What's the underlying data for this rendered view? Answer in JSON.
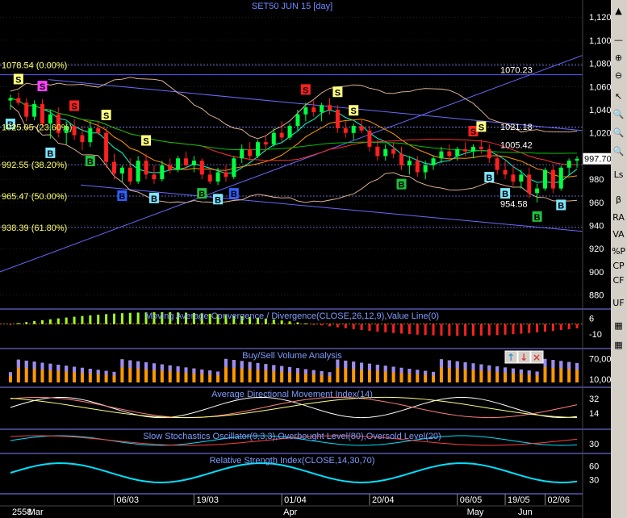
{
  "colors": {
    "background": "#000000",
    "axis_text": "#ffffff",
    "title": "#6f8cff",
    "panel_title": "#7f9cff",
    "grid": "#333333",
    "up_candle": "#00ff40",
    "down_candle": "#ff2020",
    "buy_signal": "#7fe6ff",
    "sell_signal": "#ffff80",
    "fib_label": "#ffff60",
    "trend_line": "#6a6aff",
    "price_marker": "#ffffff"
  },
  "chart_data": [
    {
      "panel": "price",
      "type": "candlestick",
      "title": "SET50 JUN 15   [day]",
      "ylim": [
        870,
        1125
      ],
      "y_ticks": [
        {
          "value": 1120,
          "label": "1,120"
        },
        {
          "value": 1100,
          "label": "1,100"
        },
        {
          "value": 1080,
          "label": "1,080"
        },
        {
          "value": 1060,
          "label": "1,060"
        },
        {
          "value": 1040,
          "label": "1,040"
        },
        {
          "value": 1020,
          "label": "1,020"
        },
        {
          "value": 1000,
          "label": "1,000"
        },
        {
          "value": 980,
          "label": "980"
        },
        {
          "value": 960,
          "label": "960"
        },
        {
          "value": 940,
          "label": "940"
        },
        {
          "value": 920,
          "label": "920"
        },
        {
          "value": 900,
          "label": "900"
        },
        {
          "value": 880,
          "label": "880"
        }
      ],
      "last_price": {
        "value": 997.7,
        "label": "997.70"
      },
      "fib_levels": [
        {
          "value": 1078.54,
          "label": "1078.54 (0.00%)"
        },
        {
          "value": 1025.05,
          "label": "1025.05 (23.60%)"
        },
        {
          "value": 992.55,
          "label": "992.55 (38.20%)"
        },
        {
          "value": 965.47,
          "label": "965.47 (50.00%)"
        },
        {
          "value": 938.39,
          "label": "938.39 (61.80%)"
        }
      ],
      "price_annotations": [
        {
          "value": 1070.23,
          "label": "1070.23"
        },
        {
          "value": 1021.18,
          "label": "1021.18"
        },
        {
          "value": 1005.42,
          "label": "1005.42"
        },
        {
          "value": 954.58,
          "label": "954.58"
        }
      ],
      "candles": [
        {
          "o": 1048,
          "h": 1053,
          "l": 1040,
          "c": 1050
        },
        {
          "o": 1050,
          "h": 1055,
          "l": 1044,
          "c": 1046
        },
        {
          "o": 1046,
          "h": 1050,
          "l": 1030,
          "c": 1034
        },
        {
          "o": 1034,
          "h": 1048,
          "l": 1031,
          "c": 1045
        },
        {
          "o": 1045,
          "h": 1049,
          "l": 1025,
          "c": 1028
        },
        {
          "o": 1028,
          "h": 1040,
          "l": 1015,
          "c": 1036
        },
        {
          "o": 1036,
          "h": 1042,
          "l": 1016,
          "c": 1020
        },
        {
          "o": 1020,
          "h": 1030,
          "l": 1010,
          "c": 1026
        },
        {
          "o": 1026,
          "h": 1032,
          "l": 1014,
          "c": 1018
        },
        {
          "o": 1018,
          "h": 1026,
          "l": 1005,
          "c": 1012
        },
        {
          "o": 1012,
          "h": 1030,
          "l": 1008,
          "c": 1024
        },
        {
          "o": 1024,
          "h": 1030,
          "l": 1018,
          "c": 1020
        },
        {
          "o": 1020,
          "h": 1024,
          "l": 990,
          "c": 995
        },
        {
          "o": 995,
          "h": 1002,
          "l": 980,
          "c": 985
        },
        {
          "o": 985,
          "h": 992,
          "l": 978,
          "c": 990
        },
        {
          "o": 990,
          "h": 998,
          "l": 975,
          "c": 978
        },
        {
          "o": 978,
          "h": 1000,
          "l": 976,
          "c": 996
        },
        {
          "o": 996,
          "h": 1002,
          "l": 980,
          "c": 984
        },
        {
          "o": 984,
          "h": 992,
          "l": 976,
          "c": 980
        },
        {
          "o": 980,
          "h": 996,
          "l": 978,
          "c": 992
        },
        {
          "o": 992,
          "h": 998,
          "l": 985,
          "c": 988
        },
        {
          "o": 988,
          "h": 1000,
          "l": 986,
          "c": 998
        },
        {
          "o": 998,
          "h": 1004,
          "l": 988,
          "c": 992
        },
        {
          "o": 992,
          "h": 1000,
          "l": 986,
          "c": 996
        },
        {
          "o": 996,
          "h": 998,
          "l": 980,
          "c": 984
        },
        {
          "o": 984,
          "h": 990,
          "l": 976,
          "c": 978
        },
        {
          "o": 978,
          "h": 990,
          "l": 975,
          "c": 986
        },
        {
          "o": 986,
          "h": 992,
          "l": 978,
          "c": 982
        },
        {
          "o": 982,
          "h": 1000,
          "l": 980,
          "c": 998
        },
        {
          "o": 998,
          "h": 1010,
          "l": 994,
          "c": 1006
        },
        {
          "o": 1006,
          "h": 1012,
          "l": 996,
          "c": 1000
        },
        {
          "o": 1000,
          "h": 1014,
          "l": 998,
          "c": 1012
        },
        {
          "o": 1012,
          "h": 1018,
          "l": 1004,
          "c": 1010
        },
        {
          "o": 1010,
          "h": 1024,
          "l": 1008,
          "c": 1020
        },
        {
          "o": 1020,
          "h": 1030,
          "l": 1012,
          "c": 1016
        },
        {
          "o": 1016,
          "h": 1028,
          "l": 1014,
          "c": 1026
        },
        {
          "o": 1026,
          "h": 1040,
          "l": 1022,
          "c": 1036
        },
        {
          "o": 1036,
          "h": 1046,
          "l": 1030,
          "c": 1042
        },
        {
          "o": 1042,
          "h": 1048,
          "l": 1034,
          "c": 1038
        },
        {
          "o": 1038,
          "h": 1046,
          "l": 1030,
          "c": 1044
        },
        {
          "o": 1044,
          "h": 1050,
          "l": 1036,
          "c": 1040
        },
        {
          "o": 1040,
          "h": 1044,
          "l": 1020,
          "c": 1024
        },
        {
          "o": 1024,
          "h": 1030,
          "l": 1016,
          "c": 1020
        },
        {
          "o": 1020,
          "h": 1028,
          "l": 1014,
          "c": 1026
        },
        {
          "o": 1026,
          "h": 1032,
          "l": 1020,
          "c": 1022
        },
        {
          "o": 1022,
          "h": 1026,
          "l": 1004,
          "c": 1008
        },
        {
          "o": 1008,
          "h": 1014,
          "l": 996,
          "c": 1000
        },
        {
          "o": 1000,
          "h": 1010,
          "l": 996,
          "c": 1006
        },
        {
          "o": 1006,
          "h": 1012,
          "l": 998,
          "c": 1002
        },
        {
          "o": 1002,
          "h": 1008,
          "l": 988,
          "c": 992
        },
        {
          "o": 992,
          "h": 1000,
          "l": 984,
          "c": 996
        },
        {
          "o": 996,
          "h": 1000,
          "l": 982,
          "c": 986
        },
        {
          "o": 986,
          "h": 996,
          "l": 980,
          "c": 992
        },
        {
          "o": 992,
          "h": 1000,
          "l": 988,
          "c": 998
        },
        {
          "o": 998,
          "h": 1008,
          "l": 994,
          "c": 1004
        },
        {
          "o": 1004,
          "h": 1010,
          "l": 996,
          "c": 1000
        },
        {
          "o": 1000,
          "h": 1008,
          "l": 996,
          "c": 1006
        },
        {
          "o": 1006,
          "h": 1012,
          "l": 1000,
          "c": 1004
        },
        {
          "o": 1004,
          "h": 1010,
          "l": 998,
          "c": 1008
        },
        {
          "o": 1008,
          "h": 1014,
          "l": 1002,
          "c": 1006
        },
        {
          "o": 1006,
          "h": 1010,
          "l": 994,
          "c": 998
        },
        {
          "o": 998,
          "h": 1002,
          "l": 984,
          "c": 988
        },
        {
          "o": 988,
          "h": 996,
          "l": 980,
          "c": 984
        },
        {
          "o": 984,
          "h": 992,
          "l": 974,
          "c": 978
        },
        {
          "o": 978,
          "h": 988,
          "l": 972,
          "c": 984
        },
        {
          "o": 984,
          "h": 990,
          "l": 964,
          "c": 968
        },
        {
          "o": 968,
          "h": 976,
          "l": 960,
          "c": 972
        },
        {
          "o": 972,
          "h": 990,
          "l": 970,
          "c": 988
        },
        {
          "o": 988,
          "h": 992,
          "l": 968,
          "c": 972
        },
        {
          "o": 972,
          "h": 992,
          "l": 970,
          "c": 990
        },
        {
          "o": 990,
          "h": 998,
          "l": 984,
          "c": 996
        },
        {
          "o": 996,
          "h": 1000,
          "l": 990,
          "c": 997.7
        }
      ],
      "buy_signals": [
        0,
        5,
        10,
        14,
        18,
        24,
        26,
        28,
        49,
        60,
        62,
        66,
        69
      ],
      "sell_signals": [
        1,
        4,
        8,
        12,
        17,
        37,
        41,
        43,
        58,
        59
      ],
      "x_ticks": [
        "06/03",
        "19/03",
        "01/04",
        "20/04",
        "06/05",
        "19/05",
        "02/06"
      ],
      "x_tick_index": [
        13,
        23,
        34,
        45,
        56,
        62,
        67
      ],
      "x_months": [
        "2558",
        "Mar",
        "Apr",
        "May",
        "Jun"
      ],
      "x_month_index": [
        0,
        2,
        34,
        57,
        78
      ]
    },
    {
      "panel": "macd",
      "type": "bar",
      "title": "Moving Average Convergence / Divergence(CLOSE,26,12,9),Value Line(0)",
      "y_ticks": [
        {
          "value": 6,
          "label": "6"
        },
        {
          "value": -10,
          "label": "-10"
        }
      ],
      "ylim": [
        -20,
        12
      ]
    },
    {
      "panel": "volume",
      "type": "bar",
      "title": "Buy/Sell Volume Analysis",
      "y_ticks": [
        {
          "value": 70,
          "label": "70,00"
        },
        {
          "value": 10,
          "label": "10,00"
        }
      ],
      "ylim": [
        0,
        90
      ]
    },
    {
      "panel": "adx",
      "type": "line",
      "title": "Average Directional Movement Index(14)",
      "y_ticks": [
        {
          "value": 32,
          "label": "32"
        },
        {
          "value": 14,
          "label": "14"
        }
      ],
      "ylim": [
        0,
        42
      ]
    },
    {
      "panel": "stochastic",
      "type": "line",
      "title": "Slow Stochastics Oscillator(9,3,3),Overbought Level(80),Oversold Level(20)",
      "y_ticks": [
        {
          "value": 30,
          "label": "30"
        }
      ],
      "ylim": [
        0,
        100
      ]
    },
    {
      "panel": "rsi",
      "type": "line",
      "title": "Relative Strength Index(CLOSE,14,30,70)",
      "y_ticks": [
        {
          "value": 60,
          "label": "60"
        },
        {
          "value": 30,
          "label": "30"
        }
      ],
      "ylim": [
        10,
        80
      ]
    }
  ],
  "toolbar_icons": [
    "arrow-up-icon",
    "arrow-down-icon",
    "close-icon"
  ],
  "right_toolbar": {
    "items": [
      "ls_label",
      "beta_label",
      "ra_label",
      "va_label",
      "pct_label",
      "cp_label",
      "cf_label",
      "uf_label"
    ],
    "ls_label": "Ls",
    "beta_label": "β",
    "ra_label": "RA",
    "va_label": "VA",
    "pct_label": "%P",
    "cp_label": "CP",
    "cf_label": "CF",
    "uf_label": "UF"
  },
  "signal_letters": {
    "buy": "B",
    "sell": "S"
  }
}
